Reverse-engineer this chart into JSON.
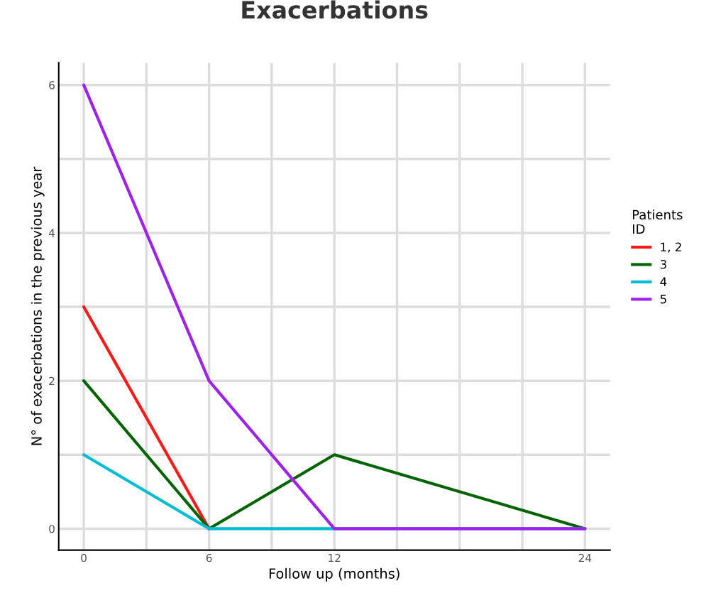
{
  "chart_data": {
    "type": "line",
    "title": "Exacerbations",
    "xlabel": "Follow up (months)",
    "ylabel": "N° of exacerbations in the previous year",
    "legend_title": "Patients\nID",
    "x": [
      0,
      6,
      12,
      24
    ],
    "series": [
      {
        "name": "1, 2",
        "color": "#ff1a1a",
        "values": [
          3,
          0,
          null,
          null
        ]
      },
      {
        "name": "3",
        "color": "#006400",
        "values": [
          2,
          0,
          1,
          0
        ]
      },
      {
        "name": "4",
        "color": "#00bcd4",
        "values": [
          1,
          0,
          0,
          0
        ]
      },
      {
        "name": "5",
        "color": "#a020f0",
        "values": [
          6,
          2,
          0,
          0
        ]
      }
    ],
    "xlim": [
      -1.2,
      25.2
    ],
    "ylim": [
      -0.29,
      6.3
    ],
    "xticks": [
      0,
      {
        "value": 3,
        "label": null
      },
      6,
      {
        "value": 9,
        "label": null
      },
      12,
      {
        "value": 15,
        "label": null
      },
      {
        "value": 18,
        "label": null
      },
      {
        "value": 21,
        "label": null
      },
      24
    ],
    "yticks": [
      0,
      {
        "value": 1,
        "label": null
      },
      2,
      {
        "value": 3,
        "label": null
      },
      4,
      {
        "value": 5,
        "label": null
      },
      6
    ],
    "grid": true,
    "legend": "right",
    "marker": "none",
    "line_style": "solid"
  }
}
